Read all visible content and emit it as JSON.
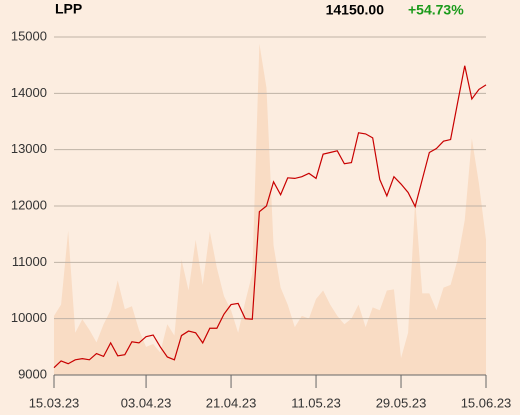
{
  "chart_data": {
    "type": "line",
    "title": "LPP",
    "last_price": "14150.00",
    "change": "+54.73%",
    "change_color": "#1a9a1a",
    "categories": [
      "15.03.23",
      null,
      null,
      null,
      null,
      null,
      null,
      null,
      null,
      null,
      null,
      null,
      null,
      "03.04.23",
      null,
      null,
      null,
      null,
      null,
      null,
      null,
      null,
      null,
      null,
      null,
      "21.04.23",
      null,
      null,
      null,
      null,
      null,
      null,
      null,
      null,
      null,
      null,
      null,
      "11.05.23",
      null,
      null,
      null,
      null,
      null,
      null,
      null,
      null,
      null,
      null,
      null,
      "29.05.23",
      null,
      null,
      null,
      null,
      null,
      null,
      null,
      null,
      null,
      null,
      null,
      "15.06.23"
    ],
    "series": [
      {
        "type": "line",
        "color": "#c80000",
        "values": [
          9130,
          9250,
          9200,
          9270,
          9290,
          9270,
          9380,
          9330,
          9570,
          9340,
          9360,
          9590,
          9570,
          9680,
          9710,
          9500,
          9320,
          9270,
          9700,
          9780,
          9750,
          9570,
          9830,
          9830,
          10080,
          10250,
          10270,
          10000,
          9990,
          11900,
          12000,
          12430,
          12200,
          12500,
          12490,
          12520,
          12580,
          12490,
          12920,
          12950,
          12980,
          12750,
          12770,
          13300,
          13280,
          13210,
          12470,
          12180,
          12520,
          12390,
          12240,
          11990,
          12470,
          12950,
          13020,
          13150,
          13180,
          13840,
          14490,
          13900,
          14070,
          14150
        ]
      },
      {
        "type": "area",
        "color": "#f9dcc4",
        "values": [
          10050,
          10250,
          11560,
          9750,
          9990,
          9800,
          9580,
          9900,
          10150,
          10680,
          10170,
          10220,
          9800,
          9500,
          9550,
          9400,
          9900,
          9700,
          11050,
          10500,
          11400,
          10600,
          11550,
          10900,
          10400,
          10150,
          9750,
          10300,
          10800,
          14880,
          14100,
          11300,
          10550,
          10250,
          9850,
          10050,
          10000,
          10350,
          10500,
          10250,
          10050,
          9900,
          10000,
          10250,
          9850,
          10200,
          10150,
          10500,
          10520,
          9300,
          9750,
          12100,
          10450,
          10450,
          10150,
          10550,
          10600,
          11050,
          11750,
          13200,
          12400,
          11400
        ]
      }
    ],
    "ylim": [
      9000,
      15000
    ],
    "yticks": [
      9000,
      10000,
      11000,
      12000,
      13000,
      14000,
      15000
    ],
    "grid": true
  }
}
